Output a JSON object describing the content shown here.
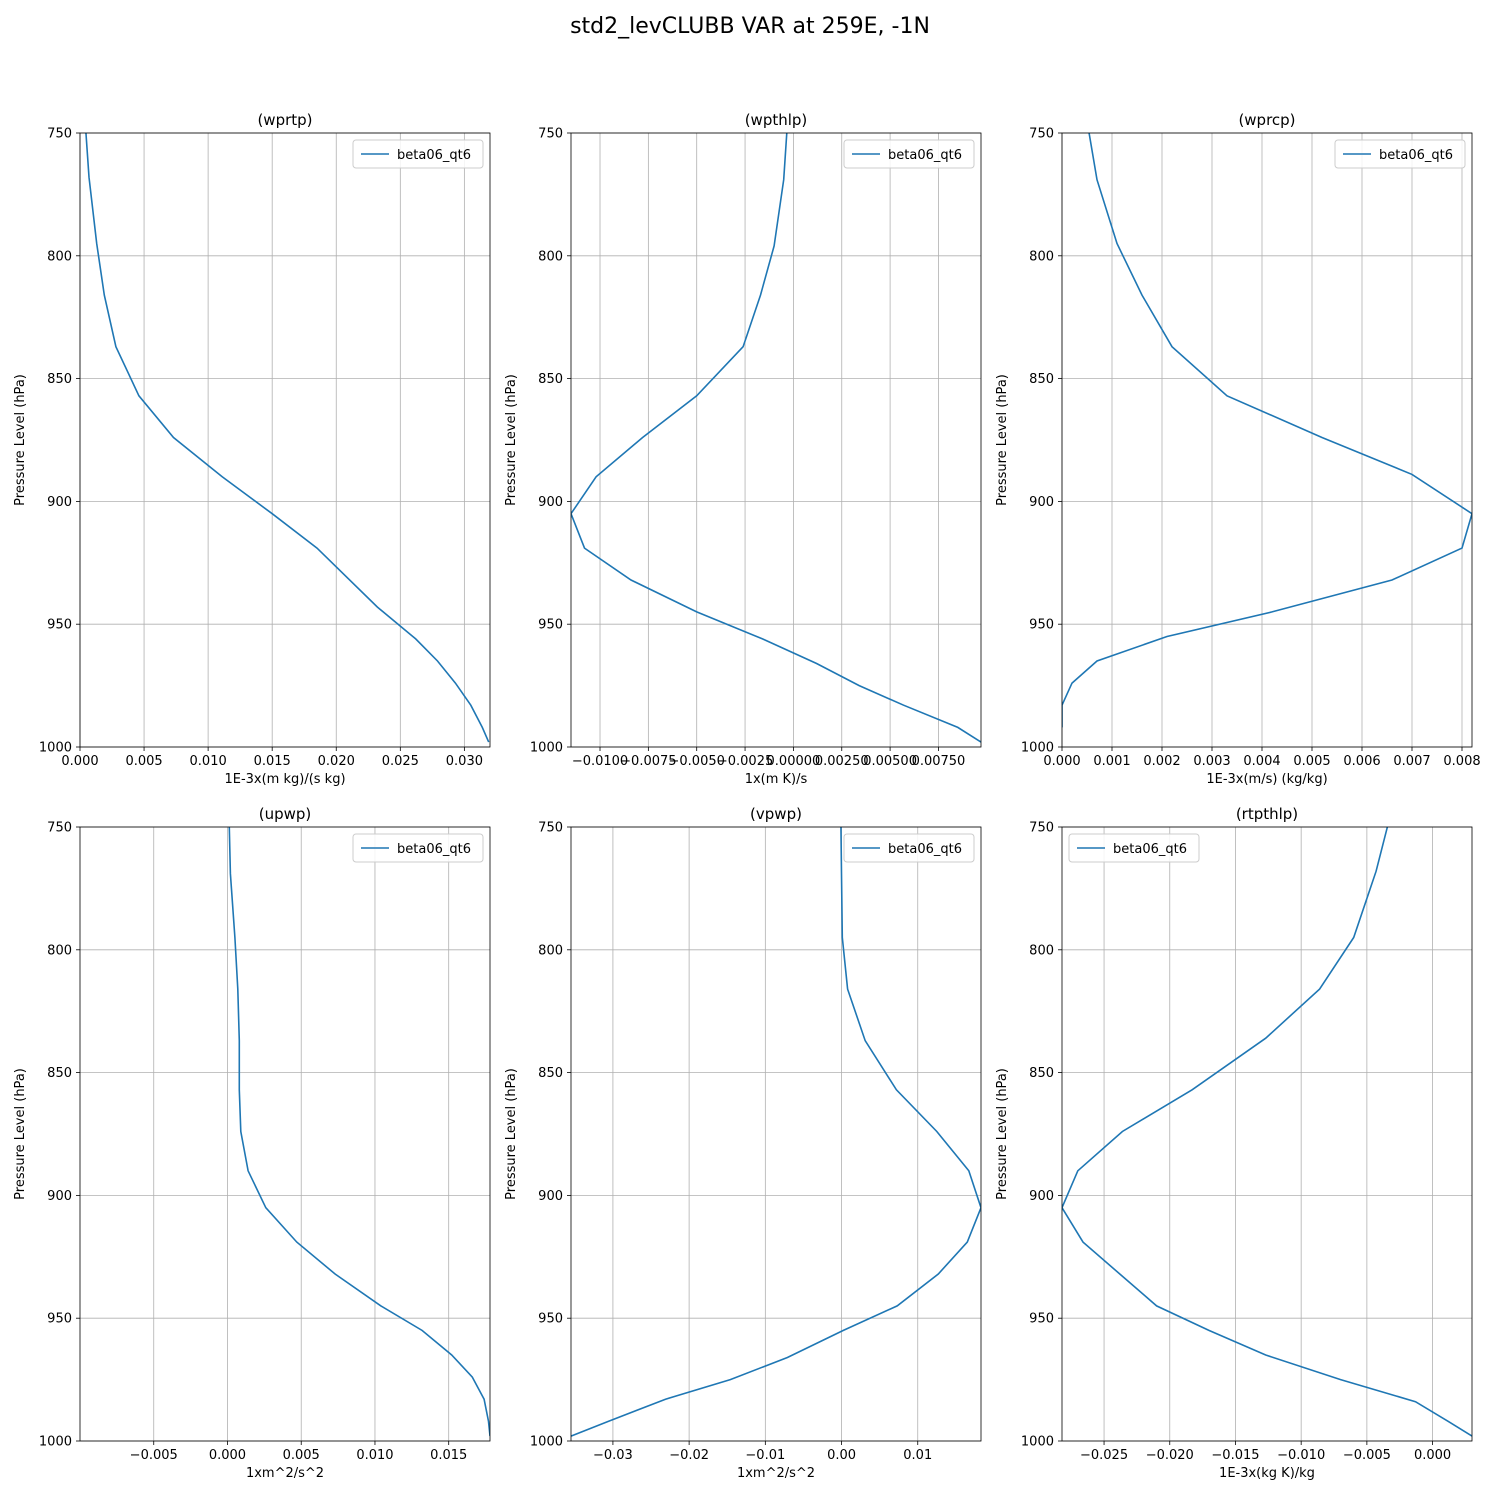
{
  "figure": {
    "title": "std2_levCLUBB VAR at 259E, -1N"
  },
  "chart_data": [
    {
      "type": "line",
      "title": "(wprtp)",
      "xlabel": "1E-3x(m kg)/(s kg)",
      "ylabel": "Pressure Level (hPa)",
      "xlim": [
        0.0,
        0.032
      ],
      "ylim": [
        1000,
        750
      ],
      "grid": true,
      "legend": "upper right",
      "xticks": [
        0.0,
        0.005,
        0.01,
        0.015,
        0.02,
        0.025,
        0.03
      ],
      "xtick_labels": [
        "0.000",
        "0.005",
        "0.010",
        "0.015",
        "0.020",
        "0.025",
        "0.030"
      ],
      "yticks": [
        750,
        800,
        850,
        900,
        950,
        1000
      ],
      "series": [
        {
          "name": "beta06_qt6",
          "color": "#1f77b4",
          "x": [
            0.0004,
            0.0007,
            0.0013,
            0.0019,
            0.0028,
            0.0046,
            0.0073,
            0.0111,
            0.015,
            0.0185,
            0.0232,
            0.0262,
            0.0279,
            0.0293,
            0.0305,
            0.0314,
            0.0319
          ],
          "y": [
            745,
            768,
            795,
            816,
            837,
            857,
            874,
            890,
            905,
            919,
            943,
            956,
            965,
            974,
            983,
            992,
            998
          ]
        }
      ]
    },
    {
      "type": "line",
      "title": "(wpthlp)",
      "xlabel": "1x(m K)/s",
      "ylabel": "Pressure Level (hPa)",
      "xlim": [
        -0.0115,
        0.0097
      ],
      "ylim": [
        1000,
        750
      ],
      "grid": true,
      "legend": "upper right",
      "xticks": [
        -0.01,
        -0.0075,
        -0.005,
        -0.0025,
        0.0,
        0.0025,
        0.005,
        0.0075
      ],
      "xtick_labels": [
        "−0.0100",
        "−0.0075",
        "−0.0050",
        "−0.0025",
        "0.00000",
        "0.00250",
        "0.00500",
        "0.00750"
      ],
      "yticks": [
        750,
        800,
        850,
        900,
        950,
        1000
      ],
      "series": [
        {
          "name": "beta06_qt6",
          "color": "#1f77b4",
          "x": [
            -0.0003,
            -0.0005,
            -0.001,
            -0.0017,
            -0.0026,
            -0.005,
            -0.0078,
            -0.0102,
            -0.0115,
            -0.0108,
            -0.0084,
            -0.005,
            -0.0016,
            0.0012,
            0.0034,
            0.0057,
            0.0085,
            0.0097
          ],
          "y": [
            745,
            769,
            796,
            816,
            837,
            857,
            874,
            890,
            905,
            919,
            932,
            945,
            956,
            966,
            975,
            983,
            992,
            998
          ]
        }
      ]
    },
    {
      "type": "line",
      "title": "(wprcp)",
      "xlabel": "1E-3x(m/s) (kg/kg)",
      "ylabel": "Pressure Level (hPa)",
      "xlim": [
        0.0,
        0.0082
      ],
      "ylim": [
        1000,
        750
      ],
      "grid": true,
      "legend": "upper right",
      "xticks": [
        0.0,
        0.001,
        0.002,
        0.003,
        0.004,
        0.005,
        0.006,
        0.007,
        0.008
      ],
      "xtick_labels": [
        "0.000",
        "0.001",
        "0.002",
        "0.003",
        "0.004",
        "0.005",
        "0.006",
        "0.007",
        "0.008"
      ],
      "yticks": [
        750,
        800,
        850,
        900,
        950,
        1000
      ],
      "series": [
        {
          "name": "beta06_qt6",
          "color": "#1f77b4",
          "x": [
            0.0005,
            0.0007,
            0.0011,
            0.0016,
            0.0022,
            0.0033,
            0.0052,
            0.007,
            0.0082,
            0.008,
            0.0066,
            0.0042,
            0.0021,
            0.0007,
            0.0002,
            0.0,
            0.0
          ],
          "y": [
            745,
            769,
            795,
            816,
            837,
            857,
            874,
            889,
            905,
            919,
            932,
            945,
            955,
            965,
            974,
            983,
            992
          ]
        }
      ]
    },
    {
      "type": "line",
      "title": "(upwp)",
      "xlabel": "1xm^2/s^2",
      "ylabel": "Pressure Level (hPa)",
      "xlim": [
        -0.01,
        0.0178
      ],
      "ylim": [
        1000,
        750
      ],
      "grid": true,
      "legend": "upper right",
      "xticks": [
        -0.005,
        0.0,
        0.005,
        0.01,
        0.015
      ],
      "xtick_labels": [
        "−0.005",
        "0.000",
        "0.005",
        "0.010",
        "0.015"
      ],
      "yticks": [
        750,
        800,
        850,
        900,
        950,
        1000
      ],
      "series": [
        {
          "name": "beta06_qt6",
          "color": "#1f77b4",
          "x": [
            0.0001,
            0.0002,
            0.0005,
            0.0007,
            0.0008,
            0.0008,
            0.0009,
            0.0014,
            0.0026,
            0.0047,
            0.0073,
            0.0104,
            0.0132,
            0.0152,
            0.0166,
            0.0174,
            0.0177,
            0.0178
          ],
          "y": [
            745,
            769,
            795,
            816,
            837,
            857,
            874,
            890,
            905,
            919,
            932,
            945,
            955,
            965,
            974,
            983,
            992,
            998
          ]
        }
      ]
    },
    {
      "type": "line",
      "title": "(vpwp)",
      "xlabel": "1xm^2/s^2",
      "ylabel": "Pressure Level (hPa)",
      "xlim": [
        -0.0355,
        0.0183
      ],
      "ylim": [
        1000,
        750
      ],
      "grid": true,
      "legend": "upper right",
      "xticks": [
        -0.03,
        -0.02,
        -0.01,
        0.0,
        0.01
      ],
      "xtick_labels": [
        "−0.03",
        "−0.02",
        "−0.01",
        "0.00",
        "0.01"
      ],
      "yticks": [
        750,
        800,
        850,
        900,
        950,
        1000
      ],
      "series": [
        {
          "name": "beta06_qt6",
          "color": "#1f77b4",
          "x": [
            -0.0001,
            0.0,
            0.0001,
            0.0008,
            0.0031,
            0.0072,
            0.0125,
            0.0167,
            0.0183,
            0.0165,
            0.0127,
            0.0073,
            0.0002,
            -0.0071,
            -0.0146,
            -0.0231,
            -0.0306,
            -0.0355
          ],
          "y": [
            745,
            769,
            795,
            816,
            837,
            857,
            874,
            890,
            905,
            919,
            932,
            945,
            955,
            966,
            975,
            983,
            992,
            998
          ]
        }
      ]
    },
    {
      "type": "line",
      "title": "(rtpthlp)",
      "xlabel": "1E-3x(kg K)/kg",
      "ylabel": "Pressure Level (hPa)",
      "xlim": [
        -0.0282,
        0.003
      ],
      "ylim": [
        1000,
        750
      ],
      "grid": true,
      "legend": "upper left",
      "xticks": [
        -0.025,
        -0.02,
        -0.015,
        -0.01,
        -0.005,
        0.0
      ],
      "xtick_labels": [
        "−0.025",
        "−0.020",
        "−0.015",
        "−0.010",
        "−0.005",
        "0.000"
      ],
      "yticks": [
        750,
        800,
        850,
        900,
        950,
        1000
      ],
      "series": [
        {
          "name": "beta06_qt6",
          "color": "#1f77b4",
          "x": [
            -0.0032,
            -0.0043,
            -0.006,
            -0.0086,
            -0.0127,
            -0.0183,
            -0.0236,
            -0.027,
            -0.0282,
            -0.0266,
            -0.0238,
            -0.021,
            -0.017,
            -0.0127,
            -0.007,
            -0.0013,
            0.0012,
            0.003
          ],
          "y": [
            745,
            768,
            795,
            816,
            836,
            857,
            874,
            890,
            905,
            919,
            932,
            945,
            955,
            965,
            975,
            984,
            992,
            998
          ]
        }
      ]
    }
  ]
}
